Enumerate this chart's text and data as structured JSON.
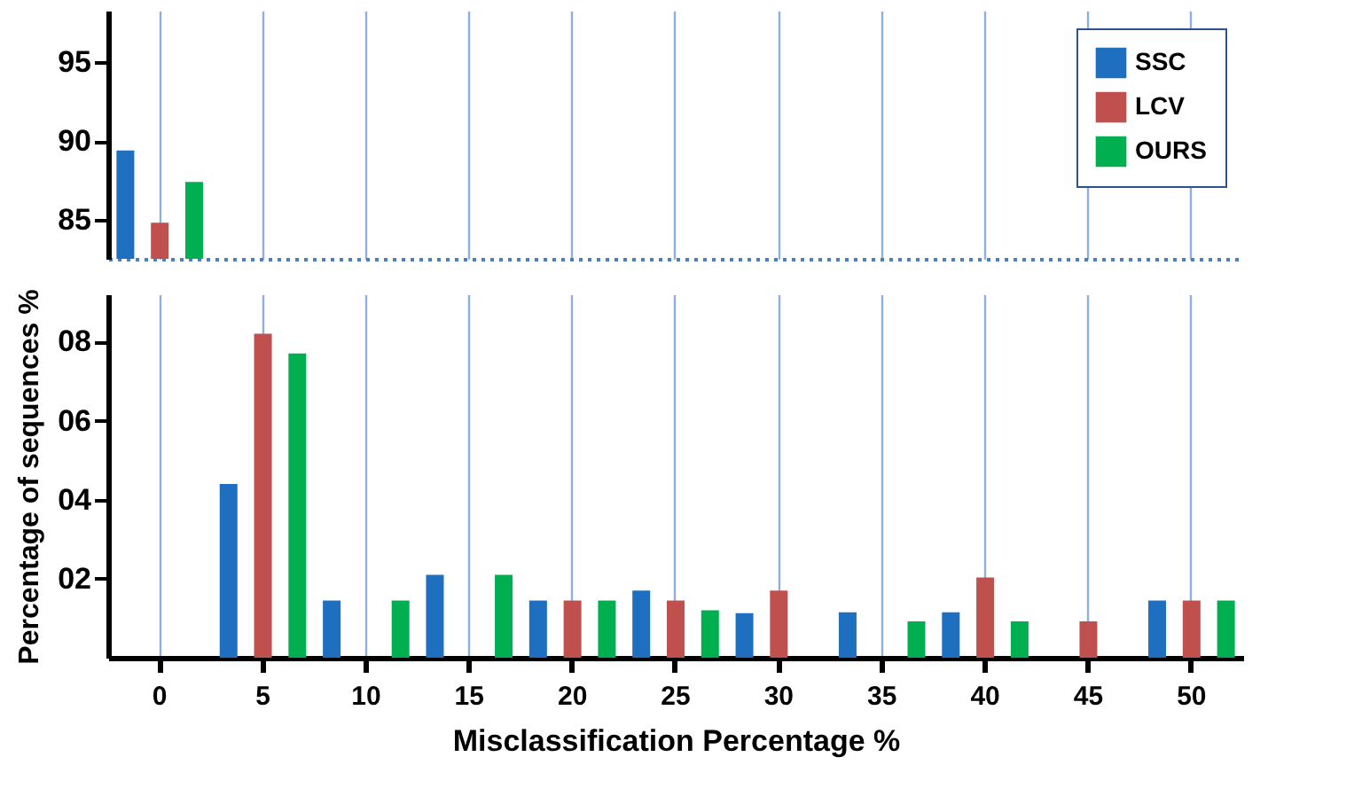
{
  "chart_data": [
    {
      "type": "bar",
      "categories": [
        "0",
        "5",
        "10",
        "15",
        "20",
        "25",
        "30",
        "35",
        "40",
        "45",
        "50"
      ],
      "series": [
        {
          "name": "SSC",
          "color": "#1f6fc0",
          "values": [
            89.4,
            null,
            null,
            null,
            null,
            null,
            null,
            null,
            null,
            null,
            null
          ]
        },
        {
          "name": "LCV",
          "color": "#c0504d",
          "values": [
            84.8,
            null,
            null,
            null,
            null,
            null,
            null,
            null,
            null,
            null,
            null
          ]
        },
        {
          "name": "OURS",
          "color": "#00b050",
          "values": [
            87.4,
            null,
            null,
            null,
            null,
            null,
            null,
            null,
            null,
            null,
            null
          ]
        }
      ],
      "ylim": [
        82.5,
        98.3
      ],
      "yticks": [
        85,
        90,
        95
      ],
      "grid": "x",
      "legend": "top right",
      "tick_labels": "y"
    },
    {
      "type": "bar",
      "categories": [
        "0",
        "5",
        "10",
        "15",
        "20",
        "25",
        "30",
        "35",
        "40",
        "45",
        "50"
      ],
      "xlabel": "Misclassification Percentage %",
      "ylabel": "Percentage  of sequences %",
      "series": [
        {
          "color": "#1f6fc0",
          "values": [
            null,
            4.4,
            1.45,
            2.1,
            1.45,
            1.7,
            1.13,
            1.15,
            1.15,
            null,
            1.45
          ]
        },
        {
          "color": "#c0504d",
          "values": [
            null,
            8.2,
            null,
            null,
            1.45,
            1.45,
            1.7,
            null,
            2.03,
            0.92,
            1.45
          ]
        },
        {
          "color": "#00b050",
          "values": [
            null,
            7.7,
            1.45,
            2.1,
            1.45,
            1.2,
            null,
            0.92,
            0.92,
            null,
            1.45
          ]
        }
      ],
      "ylim": [
        0,
        9.2
      ],
      "yticks": [
        {
          "value": 2,
          "label": "02"
        },
        {
          "value": 4,
          "label": "04"
        },
        {
          "value": 6,
          "label": "06"
        },
        {
          "value": 8,
          "label": "08"
        }
      ],
      "grid": "x"
    }
  ]
}
